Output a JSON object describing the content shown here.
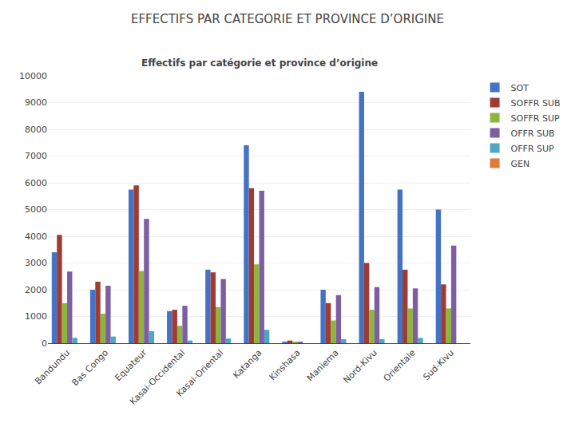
{
  "chart_data": {
    "type": "bar",
    "title": "EFFECTIFS PAR CATEGORIE ET PROVINCE D’ORIGINE",
    "subtitle": "Effectifs par catégorie et province d’origine",
    "categories": [
      "Bandundu",
      "Bas Congo",
      "Equateur",
      "Kasai-Occidental",
      "Kasai-Oriental",
      "Katanga",
      "Kinshasa",
      "Maniema",
      "Nord-Kivu",
      "Orientale",
      "Sud-Kivu"
    ],
    "series": [
      {
        "name": "SOT",
        "color": "#4472C4",
        "values": [
          3400,
          2000,
          5750,
          1200,
          2750,
          7400,
          50,
          2000,
          9400,
          5750,
          5000
        ]
      },
      {
        "name": "SOFFR SUB",
        "color": "#9E3B33",
        "values": [
          4050,
          2300,
          5900,
          1250,
          2650,
          5800,
          100,
          1500,
          3000,
          2750,
          2200
        ]
      },
      {
        "name": "SOFFR SUP",
        "color": "#8DB53E",
        "values": [
          1500,
          1100,
          2700,
          650,
          1350,
          2950,
          50,
          850,
          1250,
          1300,
          1300
        ]
      },
      {
        "name": "OFFR SUB",
        "color": "#7D5EA2",
        "values": [
          2680,
          2150,
          4650,
          1400,
          2400,
          5700,
          50,
          1800,
          2100,
          2050,
          3650
        ]
      },
      {
        "name": "OFFR SUP",
        "color": "#4EA5C4",
        "values": [
          200,
          250,
          450,
          100,
          175,
          500,
          0,
          150,
          150,
          200,
          0
        ]
      },
      {
        "name": "GEN",
        "color": "#E07B39",
        "values": [
          0,
          0,
          0,
          0,
          0,
          0,
          0,
          0,
          0,
          0,
          0
        ]
      }
    ],
    "ylim": [
      0,
      10000
    ],
    "yticks": [
      0,
      1000,
      2000,
      3000,
      4000,
      5000,
      6000,
      7000,
      8000,
      9000,
      10000
    ],
    "grid": true,
    "legend": "right"
  }
}
